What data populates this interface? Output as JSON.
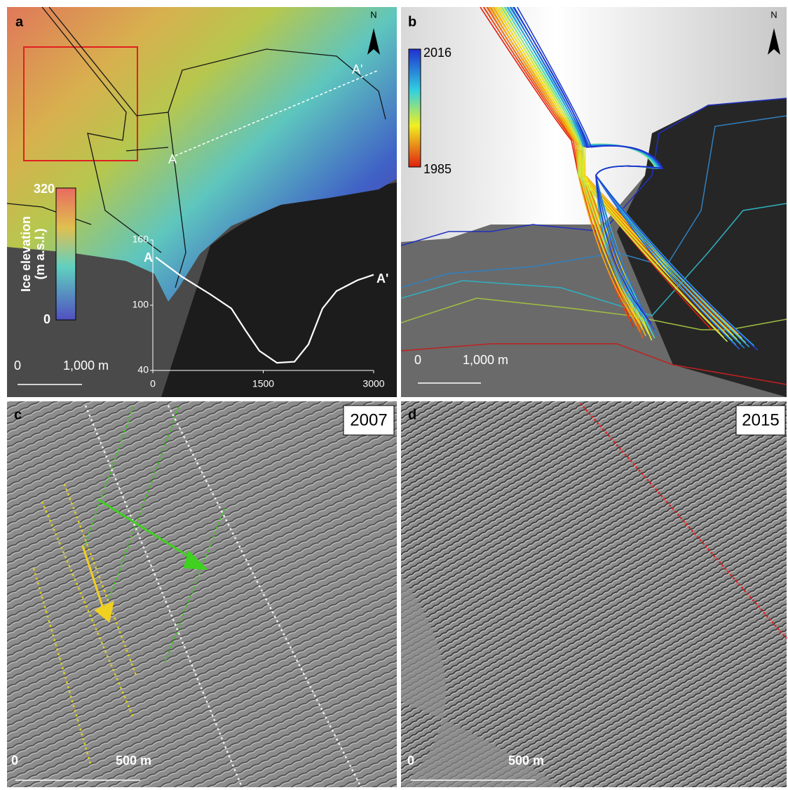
{
  "panel_a": {
    "label": "a",
    "north": "N",
    "transect_start": "A",
    "transect_end": "A'",
    "profile_start": "A",
    "profile_end": "A'",
    "colorbar": {
      "max": "320",
      "min": "0",
      "title": [
        "Ice elevation",
        "(m a.s.l.)"
      ]
    },
    "profile": {
      "x": [
        40,
        400,
        781,
        1067,
        1257,
        1448,
        1686,
        1924,
        2114,
        2305,
        2495,
        2781,
        3000
      ],
      "y": [
        144,
        126,
        110,
        97,
        77,
        58,
        47,
        48,
        64,
        97,
        113,
        123,
        128
      ],
      "xlim": [
        0,
        3000
      ],
      "ylim": [
        40,
        160
      ],
      "xticks": [
        0,
        1500,
        3000
      ],
      "yticks": [
        40,
        100,
        160
      ]
    },
    "scale_bar": {
      "start": "0",
      "end": "1,000 m"
    }
  },
  "panel_b": {
    "label": "b",
    "north": "N",
    "colorbar": {
      "max": "2016",
      "min": "1985"
    },
    "scale_bar": {
      "start": "0",
      "end": "1,000 m"
    }
  },
  "panel_c": {
    "label": "c",
    "year": "2007",
    "scale_bar": {
      "start": "0",
      "end": "500 m"
    }
  },
  "panel_d": {
    "label": "d",
    "year": "2015",
    "scale_bar": {
      "start": "0",
      "end": "500 m"
    }
  }
}
